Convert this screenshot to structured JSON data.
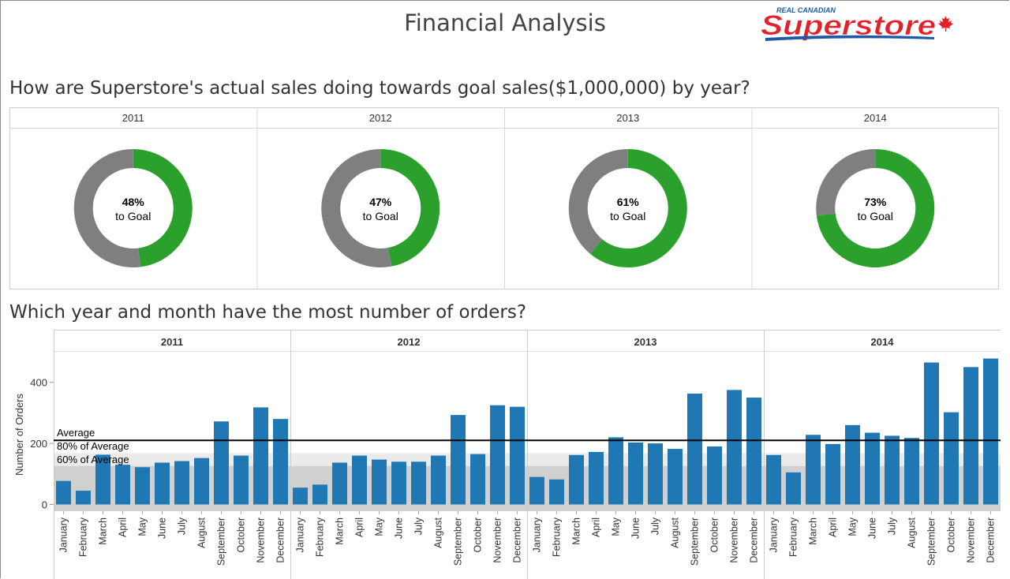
{
  "page": {
    "title": "Financial Analysis",
    "logo_top": "REAL CANADIAN",
    "logo_main": "Superstore"
  },
  "colors": {
    "green": "#2ca02c",
    "gray": "#7f7f7f",
    "bar": "#1f77b4",
    "band_dark": "#d0d0d0",
    "band_light": "#ebebeb",
    "logo_red": "#e4202a",
    "logo_blue": "#1f5aa8"
  },
  "chart_data": [
    {
      "type": "pie",
      "title": "How are Superstore's actual sales doing towards goal sales($1,000,000) by year?",
      "categories": [
        "2011",
        "2012",
        "2013",
        "2014"
      ],
      "values": [
        48,
        47,
        61,
        73
      ],
      "labels": [
        "48%",
        "47%",
        "61%",
        "73%"
      ],
      "sublabel": "to Goal"
    },
    {
      "type": "bar",
      "title": "Which year and month have the most number of orders?",
      "ylabel": "Number of Orders",
      "yticks": [
        0,
        200,
        400
      ],
      "ylim": [
        -22,
        500
      ],
      "years": [
        "2011",
        "2012",
        "2013",
        "2014"
      ],
      "months": [
        "January",
        "February",
        "March",
        "April",
        "May",
        "June",
        "July",
        "August",
        "September",
        "October",
        "November",
        "December"
      ],
      "series": [
        {
          "values": [
            77,
            45,
            163,
            130,
            122,
            137,
            142,
            152,
            272,
            160,
            318,
            280
          ]
        },
        {
          "values": [
            55,
            65,
            137,
            160,
            147,
            140,
            140,
            160,
            293,
            165,
            325,
            320
          ]
        },
        {
          "values": [
            90,
            82,
            162,
            172,
            220,
            203,
            200,
            182,
            363,
            190,
            375,
            350
          ]
        },
        {
          "values": [
            162,
            105,
            228,
            198,
            260,
            235,
            225,
            218,
            465,
            302,
            450,
            478
          ]
        }
      ],
      "reference_lines": {
        "average": {
          "label": "Average",
          "value": 210
        },
        "avg80": {
          "label": "80% of Average",
          "value": 168
        },
        "avg60": {
          "label": "60% of Average",
          "value": 126
        }
      }
    }
  ]
}
